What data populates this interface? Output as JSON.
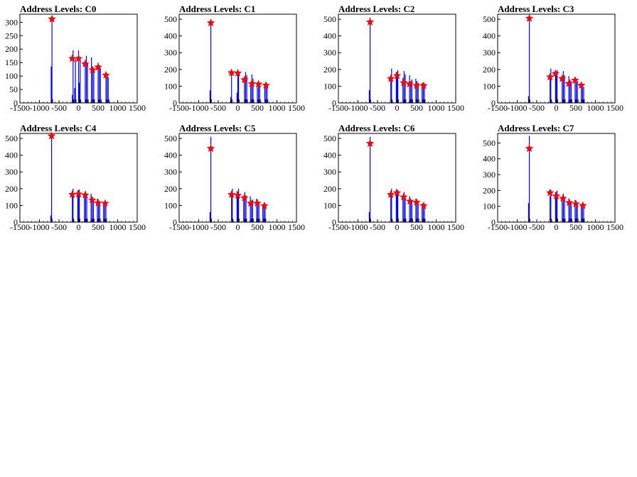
{
  "chart_data": [
    {
      "type": "histogram",
      "title": "Address Levels: C0",
      "xlim": [
        -1500,
        1500
      ],
      "ylim": [
        0,
        330
      ],
      "xticks": [
        -1500,
        -1000,
        -500,
        0,
        500,
        1000,
        1500
      ],
      "yticks": [
        0,
        50,
        100,
        150,
        200,
        250,
        300
      ],
      "series": [
        {
          "name": "",
          "color": "#0000ff",
          "x": [
            -700,
            -680,
            -160,
            -140,
            -100,
            -80,
            0,
            20,
            40,
            170,
            200,
            230,
            330,
            360,
            390,
            500,
            530,
            560,
            700,
            730,
            760
          ],
          "y": [
            135,
            310,
            30,
            195,
            55,
            165,
            195,
            75,
            165,
            160,
            175,
            145,
            170,
            130,
            120,
            150,
            140,
            130,
            110,
            100,
            95
          ]
        }
      ],
      "peaks": {
        "x": [
          -680,
          -160,
          0,
          170,
          360,
          500,
          700
        ],
        "y": [
          312,
          165,
          165,
          145,
          123,
          133,
          103
        ]
      }
    },
    {
      "type": "histogram",
      "title": "Address Levels: C1",
      "xlim": [
        -1500,
        1500
      ],
      "ylim": [
        0,
        530
      ],
      "xticks": [
        -1500,
        -1000,
        -500,
        0,
        500,
        1000,
        1500
      ],
      "yticks": [
        0,
        100,
        200,
        300,
        400,
        500
      ],
      "series": [
        {
          "name": "",
          "color": "#0000ff",
          "x": [
            -710,
            -690,
            -180,
            -160,
            -20,
            0,
            20,
            170,
            200,
            230,
            330,
            360,
            390,
            500,
            530,
            560,
            690,
            720,
            750
          ],
          "y": [
            75,
            500,
            35,
            185,
            60,
            180,
            185,
            130,
            185,
            165,
            115,
            170,
            145,
            95,
            120,
            105,
            110,
            105,
            95
          ]
        }
      ],
      "peaks": {
        "x": [
          -690,
          -160,
          0,
          170,
          360,
          530,
          720
        ],
        "y": [
          478,
          180,
          178,
          138,
          115,
          112,
          105
        ]
      }
    },
    {
      "type": "histogram",
      "title": "Address Levels: C2",
      "xlim": [
        -1500,
        1500
      ],
      "ylim": [
        0,
        530
      ],
      "xticks": [
        -1500,
        -1000,
        -500,
        0,
        500,
        1000,
        1500
      ],
      "yticks": [
        0,
        100,
        200,
        300,
        400,
        500
      ],
      "series": [
        {
          "name": "",
          "color": "#0000ff",
          "x": [
            -710,
            -690,
            -160,
            -140,
            -20,
            0,
            20,
            150,
            180,
            210,
            320,
            350,
            380,
            480,
            510,
            540,
            640,
            670,
            700
          ],
          "y": [
            75,
            510,
            150,
            205,
            185,
            165,
            195,
            150,
            190,
            170,
            165,
            130,
            140,
            145,
            130,
            120,
            120,
            100,
            95
          ]
        }
      ],
      "peaks": {
        "x": [
          -690,
          -160,
          0,
          170,
          320,
          500,
          680
        ],
        "y": [
          483,
          145,
          163,
          120,
          113,
          103,
          103
        ]
      }
    },
    {
      "type": "histogram",
      "title": "Address Levels: C3",
      "xlim": [
        -1500,
        1500
      ],
      "ylim": [
        0,
        530
      ],
      "xticks": [
        -1500,
        -1000,
        -500,
        0,
        500,
        1000,
        1500
      ],
      "yticks": [
        0,
        100,
        200,
        300,
        400,
        500
      ],
      "series": [
        {
          "name": "",
          "color": "#0000ff",
          "x": [
            -710,
            -690,
            -160,
            -140,
            -20,
            0,
            20,
            150,
            180,
            210,
            320,
            350,
            380,
            480,
            510,
            540,
            640,
            670,
            700
          ],
          "y": [
            40,
            525,
            160,
            205,
            190,
            170,
            195,
            150,
            190,
            165,
            160,
            140,
            130,
            140,
            120,
            130,
            115,
            105,
            95
          ]
        }
      ],
      "peaks": {
        "x": [
          -690,
          -160,
          -20,
          150,
          320,
          480,
          640
        ],
        "y": [
          505,
          155,
          175,
          145,
          115,
          135,
          105
        ]
      }
    },
    {
      "type": "histogram",
      "title": "Address Levels: C4",
      "xlim": [
        -1500,
        1500
      ],
      "ylim": [
        0,
        530
      ],
      "xticks": [
        -1500,
        -1000,
        -500,
        0,
        500,
        1000,
        1500
      ],
      "yticks": [
        0,
        100,
        200,
        300,
        400,
        500
      ],
      "series": [
        {
          "name": "",
          "color": "#0000ff",
          "x": [
            -710,
            -690,
            -160,
            -140,
            -20,
            0,
            20,
            150,
            180,
            210,
            320,
            350,
            380,
            480,
            510,
            540,
            640,
            670,
            700
          ],
          "y": [
            40,
            525,
            175,
            200,
            190,
            170,
            195,
            170,
            185,
            165,
            170,
            145,
            130,
            140,
            120,
            125,
            115,
            110,
            100
          ]
        }
      ],
      "peaks": {
        "x": [
          -690,
          -160,
          0,
          170,
          350,
          500,
          680
        ],
        "y": [
          515,
          165,
          168,
          162,
          132,
          115,
          112
        ]
      }
    },
    {
      "type": "histogram",
      "title": "Address Levels: C5",
      "xlim": [
        -1500,
        1500
      ],
      "ylim": [
        0,
        530
      ],
      "xticks": [
        -1500,
        -1000,
        -500,
        0,
        500,
        1000,
        1500
      ],
      "yticks": [
        0,
        100,
        200,
        300,
        400,
        500
      ],
      "series": [
        {
          "name": "",
          "color": "#0000ff",
          "x": [
            -710,
            -690,
            -160,
            -140,
            -20,
            0,
            20,
            150,
            180,
            210,
            320,
            350,
            380,
            480,
            510,
            540,
            640,
            670,
            700
          ],
          "y": [
            60,
            510,
            170,
            200,
            185,
            170,
            200,
            150,
            180,
            160,
            155,
            130,
            135,
            140,
            115,
            120,
            105,
            95,
            90
          ]
        }
      ],
      "peaks": {
        "x": [
          -690,
          -160,
          0,
          170,
          330,
          500,
          680
        ],
        "y": [
          440,
          165,
          160,
          145,
          113,
          113,
          98
        ]
      }
    },
    {
      "type": "histogram",
      "title": "Address Levels: C6",
      "xlim": [
        -1500,
        1500
      ],
      "ylim": [
        0,
        530
      ],
      "xticks": [
        -1500,
        -1000,
        -500,
        0,
        500,
        1000,
        1500
      ],
      "yticks": [
        0,
        100,
        200,
        300,
        400,
        500
      ],
      "series": [
        {
          "name": "",
          "color": "#0000ff",
          "x": [
            -710,
            -690,
            -160,
            -140,
            -20,
            0,
            20,
            150,
            180,
            210,
            320,
            350,
            380,
            480,
            510,
            540,
            640,
            670,
            700
          ],
          "y": [
            60,
            510,
            175,
            200,
            195,
            170,
            190,
            160,
            180,
            160,
            155,
            130,
            130,
            140,
            120,
            115,
            110,
            95,
            90
          ]
        }
      ],
      "peaks": {
        "x": [
          -690,
          -160,
          0,
          170,
          330,
          500,
          680
        ],
        "y": [
          470,
          165,
          175,
          150,
          125,
          118,
          98
        ]
      }
    },
    {
      "type": "histogram",
      "title": "Address Levels: C7",
      "xlim": [
        -1500,
        1500
      ],
      "ylim": [
        0,
        560
      ],
      "xticks": [
        -1500,
        -1000,
        -500,
        0,
        500,
        1000,
        1500
      ],
      "yticks": [
        0,
        100,
        200,
        300,
        400,
        500
      ],
      "series": [
        {
          "name": "",
          "color": "#0000ff",
          "x": [
            -710,
            -690,
            -160,
            -140,
            -20,
            0,
            20,
            150,
            180,
            210,
            320,
            350,
            380,
            480,
            510,
            540,
            640,
            670,
            700
          ],
          "y": [
            120,
            545,
            165,
            205,
            190,
            170,
            200,
            150,
            180,
            160,
            150,
            125,
            125,
            140,
            120,
            110,
            115,
            100,
            95
          ]
        }
      ],
      "peaks": {
        "x": [
          -690,
          -160,
          0,
          170,
          330,
          500,
          680
        ],
        "y": [
          465,
          185,
          165,
          150,
          123,
          115,
          105
        ]
      }
    }
  ]
}
